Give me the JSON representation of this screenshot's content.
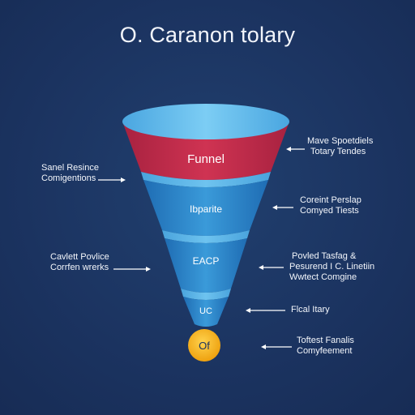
{
  "title": "O. Caranon tolary",
  "funnel": {
    "segments": [
      {
        "label": "Funnel",
        "color": "#c22f4d"
      },
      {
        "label": "Ibparite",
        "color": "#2f8ad0"
      },
      {
        "label": "EACP",
        "color": "#2a83cb"
      },
      {
        "label": "UC",
        "color": "#2d85cc"
      },
      {
        "label": "Of",
        "color": "#f6b21a"
      }
    ]
  },
  "annotations": {
    "right": [
      {
        "lines": [
          "Mave Spoetdiels",
          "Totary Tendes"
        ]
      },
      {
        "lines": [
          "Coreint Perslap",
          "Comyed Tiests"
        ]
      },
      {
        "lines": [
          "Povled Tasfag &",
          "Pesurend I C. Linetiin",
          "Wwtect Comgine"
        ]
      },
      {
        "lines": [
          "Flcal Itary"
        ]
      },
      {
        "lines": [
          "Toftest Fanalis",
          "Comyfeement"
        ]
      }
    ],
    "left": [
      {
        "lines": [
          "Sanel Resince",
          "Comigentions"
        ]
      },
      {
        "lines": [
          "Cavlett Povlice",
          "Corrfen wrerks"
        ]
      }
    ]
  },
  "colors": {
    "background": "#1b3360",
    "rim_top": "#5ab8ec",
    "funnel_top": "#c22f4d",
    "funnel_mid": "#2f8ad0",
    "ball": "#f6b21a"
  }
}
